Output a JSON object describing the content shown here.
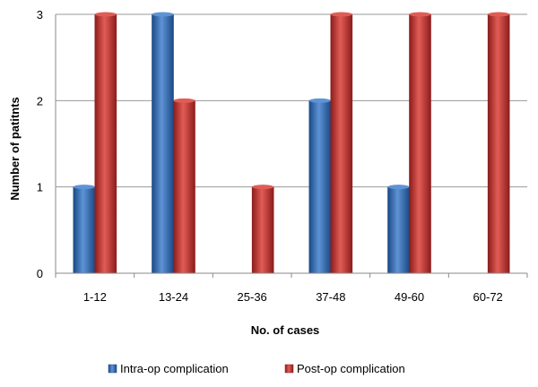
{
  "chart_data": {
    "type": "bar",
    "categories": [
      "1-12",
      "13-24",
      "25-36",
      "37-48",
      "49-60",
      "60-72"
    ],
    "series": [
      {
        "name": "Intra-op complication",
        "values": [
          1,
          3,
          0,
          2,
          1,
          0
        ],
        "color": "#2F6EBA",
        "dark": "#1B4A86",
        "light": "#5E93D6"
      },
      {
        "name": "Post-op complication",
        "values": [
          3,
          2,
          1,
          3,
          3,
          3
        ],
        "color": "#C8322E",
        "dark": "#8C1D1B",
        "light": "#E25C56"
      }
    ],
    "xlabel": "No. of cases",
    "ylabel": "Number of patitnts",
    "ylim": [
      0,
      3
    ],
    "yticks": [
      0,
      1,
      2,
      3
    ],
    "grid": true,
    "legend_position": "bottom"
  }
}
